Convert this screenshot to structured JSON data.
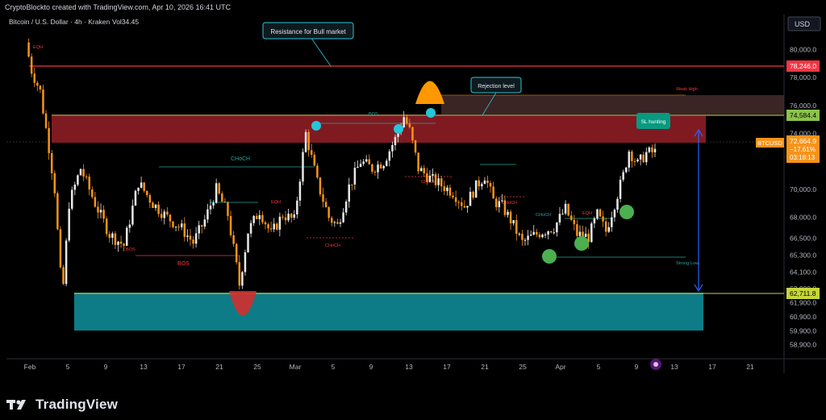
{
  "header": {
    "attribution": "CryptoBlockto created with TradingView.com, Apr 10, 2026 16:41 UTC",
    "symbol_line": "Bitcoin / U.S. Dollar · 4h · Kraken",
    "volume_label": "Vol34.45",
    "currency": "USD"
  },
  "footer": {
    "brand": "TradingView"
  },
  "colors": {
    "up_candle": "#e8e8e8",
    "down_candle": "#f7931a",
    "resistance_line": "#f23645",
    "supply_zone": "#8b1c24",
    "demand_zone": "#0e7c86",
    "marker_cyan": "#26c6da",
    "marker_green": "#4caf50",
    "arrow_blue": "#2962ff"
  },
  "chart_data": {
    "type": "candlestick",
    "symbol": "BTCUSD",
    "interval": "4h",
    "exchange": "Kraken",
    "ylim": [
      57900,
      82500
    ],
    "x_ticks": [
      "Feb",
      "5",
      "9",
      "13",
      "17",
      "21",
      "25",
      "Mar",
      "5",
      "9",
      "13",
      "17",
      "21",
      "25",
      "Apr",
      "5",
      "9",
      "13",
      "17",
      "21"
    ],
    "y_ticks": [
      "80,000.0",
      "78,000.0",
      "76,000.0",
      "74,000.0",
      "70,000.0",
      "68,000.0",
      "66,500.0",
      "65,300.0",
      "64,100.0",
      "62,900.0",
      "61,900.0",
      "60,900.0",
      "59,900.0",
      "58,900.0"
    ],
    "price_labels": [
      {
        "text": "78,246.0",
        "kind": "resistance"
      },
      {
        "text": "74,584.4",
        "kind": "level"
      },
      {
        "text": "62,711.8",
        "kind": "support"
      }
    ],
    "last_price": {
      "symbol": "BTCUSD",
      "price": "72,664.9",
      "change": "−17.61%",
      "countdown": "03:18:13"
    },
    "price_path_anchors": [
      [
        0,
        80500
      ],
      [
        2,
        78500
      ],
      [
        5,
        77000
      ],
      [
        8,
        73000
      ],
      [
        10,
        70000
      ],
      [
        12,
        64000
      ],
      [
        13,
        63200
      ],
      [
        15,
        69000
      ],
      [
        19,
        71500
      ],
      [
        24,
        69000
      ],
      [
        29,
        66800
      ],
      [
        34,
        66000
      ],
      [
        39,
        70500
      ],
      [
        44,
        69000
      ],
      [
        49,
        68000
      ],
      [
        54,
        67200
      ],
      [
        58,
        66200
      ],
      [
        62,
        67800
      ],
      [
        66,
        70000
      ],
      [
        70,
        68200
      ],
      [
        73,
        64500
      ],
      [
        74,
        63200
      ],
      [
        77,
        67000
      ],
      [
        81,
        68500
      ],
      [
        85,
        66800
      ],
      [
        89,
        68200
      ],
      [
        93,
        67800
      ],
      [
        97,
        74000
      ],
      [
        101,
        70500
      ],
      [
        105,
        68000
      ],
      [
        108,
        67400
      ],
      [
        112,
        70200
      ],
      [
        116,
        72000
      ],
      [
        120,
        71500
      ],
      [
        124,
        72000
      ],
      [
        128,
        73600
      ],
      [
        131,
        75200
      ],
      [
        133,
        74200
      ],
      [
        136,
        71500
      ],
      [
        140,
        70800
      ],
      [
        144,
        70300
      ],
      [
        148,
        69800
      ],
      [
        152,
        68800
      ],
      [
        156,
        70200
      ],
      [
        159,
        71000
      ],
      [
        162,
        69200
      ],
      [
        165,
        68800
      ],
      [
        168,
        67800
      ],
      [
        172,
        66200
      ],
      [
        175,
        66600
      ],
      [
        179,
        67000
      ],
      [
        183,
        67300
      ],
      [
        187,
        68600
      ],
      [
        191,
        66800
      ],
      [
        195,
        66600
      ],
      [
        198,
        68200
      ],
      [
        201,
        67000
      ],
      [
        204,
        69000
      ],
      [
        207,
        71000
      ],
      [
        209,
        72800
      ],
      [
        212,
        71800
      ],
      [
        215,
        72600
      ],
      [
        218,
        72664
      ]
    ],
    "annotations": [
      {
        "text": "Resistance for Bull market",
        "kind": "callout"
      },
      {
        "text": "Rejection level",
        "kind": "callout"
      },
      {
        "text": "SL hunting",
        "kind": "callout"
      },
      {
        "text": "Weak High",
        "kind": "small"
      },
      {
        "text": "Strong Low",
        "kind": "small"
      },
      {
        "text": "CHoCH",
        "kind": "structure"
      },
      {
        "text": "BOS",
        "kind": "structure"
      },
      {
        "text": "EQH",
        "kind": "structure"
      }
    ]
  }
}
